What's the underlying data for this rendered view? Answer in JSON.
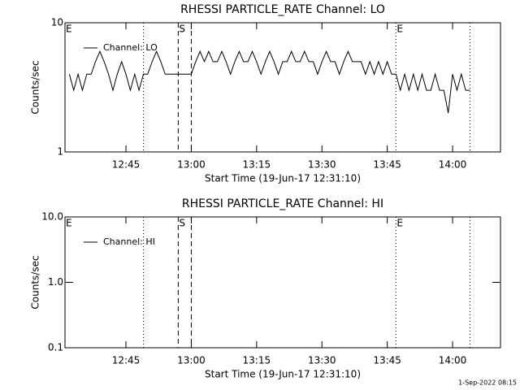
{
  "chart_data": [
    {
      "type": "line",
      "title": "RHESSI PARTICLE_RATE Channel: LO",
      "xlabel": "Start Time (19-Jun-17 12:31:10)",
      "ylabel": "Counts/sec",
      "log_y": true,
      "ylim": [
        1,
        10
      ],
      "yticks": [
        1,
        10
      ],
      "xlim": [
        "12:31",
        "14:11"
      ],
      "xticks": [
        "12:45",
        "13:00",
        "13:15",
        "13:30",
        "13:45",
        "14:00"
      ],
      "vlines": [
        {
          "x": "12:49",
          "style": "dotted"
        },
        {
          "x": "12:57",
          "style": "dashed"
        },
        {
          "x": "13:00",
          "style": "dashed"
        },
        {
          "x": "13:47",
          "style": "dotted"
        },
        {
          "x": "14:04",
          "style": "dotted"
        }
      ],
      "markers": [
        {
          "x": "12:31",
          "label": "E"
        },
        {
          "x": "12:57",
          "label": "S"
        },
        {
          "x": "13:47",
          "label": "E"
        }
      ],
      "legend": "upper left",
      "series": [
        {
          "name": "Channel: LO",
          "color": "#000000",
          "x": [
            "12:32",
            "12:33",
            "12:34",
            "12:35",
            "12:36",
            "12:37",
            "12:38",
            "12:39",
            "12:40",
            "12:41",
            "12:42",
            "12:43",
            "12:44",
            "12:45",
            "12:46",
            "12:47",
            "12:48",
            "12:49",
            "12:50",
            "12:51",
            "12:52",
            "12:53",
            "12:54",
            "12:55",
            "12:56",
            "12:57",
            "12:58",
            "12:59",
            "13:00",
            "13:01",
            "13:02",
            "13:03",
            "13:04",
            "13:05",
            "13:06",
            "13:07",
            "13:08",
            "13:09",
            "13:10",
            "13:11",
            "13:12",
            "13:13",
            "13:14",
            "13:15",
            "13:16",
            "13:17",
            "13:18",
            "13:19",
            "13:20",
            "13:21",
            "13:22",
            "13:23",
            "13:24",
            "13:25",
            "13:26",
            "13:27",
            "13:28",
            "13:29",
            "13:30",
            "13:31",
            "13:32",
            "13:33",
            "13:34",
            "13:35",
            "13:36",
            "13:37",
            "13:38",
            "13:39",
            "13:40",
            "13:41",
            "13:42",
            "13:43",
            "13:44",
            "13:45",
            "13:46",
            "13:47",
            "13:48",
            "13:49",
            "13:50",
            "13:51",
            "13:52",
            "13:53",
            "13:54",
            "13:55",
            "13:56",
            "13:57",
            "13:58",
            "13:59",
            "14:00",
            "14:01",
            "14:02",
            "14:03",
            "14:04"
          ],
          "values": [
            4,
            3,
            4,
            3,
            4,
            4,
            5,
            6,
            5,
            4,
            3,
            4,
            5,
            4,
            3,
            4,
            3,
            4,
            4,
            5,
            6,
            5,
            4,
            4,
            4,
            4,
            4,
            4,
            4,
            5,
            6,
            5,
            6,
            5,
            5,
            6,
            5,
            4,
            5,
            6,
            5,
            5,
            6,
            5,
            4,
            5,
            6,
            5,
            4,
            5,
            5,
            6,
            5,
            5,
            6,
            5,
            5,
            4,
            5,
            6,
            5,
            5,
            4,
            5,
            6,
            5,
            5,
            5,
            4,
            5,
            4,
            5,
            4,
            5,
            4,
            4,
            3,
            4,
            3,
            4,
            3,
            4,
            3,
            3,
            4,
            3,
            3,
            2,
            4,
            3,
            4,
            3,
            3
          ]
        }
      ]
    },
    {
      "type": "line",
      "title": "RHESSI PARTICLE_RATE Channel: HI",
      "xlabel": "Start Time (19-Jun-17 12:31:10)",
      "ylabel": "Counts/sec",
      "log_y": true,
      "ylim": [
        0.1,
        10
      ],
      "yticks": [
        {
          "value": 0.1,
          "label": "0.1"
        },
        {
          "value": 1,
          "label": "1.0"
        },
        {
          "value": 10,
          "label": "10.0"
        }
      ],
      "xlim": [
        "12:31",
        "14:11"
      ],
      "xticks": [
        "12:45",
        "13:00",
        "13:15",
        "13:30",
        "13:45",
        "14:00"
      ],
      "vlines": [
        {
          "x": "12:49",
          "style": "dotted"
        },
        {
          "x": "12:57",
          "style": "dashed"
        },
        {
          "x": "13:00",
          "style": "dashed"
        },
        {
          "x": "13:47",
          "style": "dotted"
        },
        {
          "x": "14:04",
          "style": "dotted"
        }
      ],
      "markers": [
        {
          "x": "12:31",
          "label": "E"
        },
        {
          "x": "12:57",
          "label": "S"
        },
        {
          "x": "13:47",
          "label": "E"
        }
      ],
      "legend": "upper left",
      "series": [
        {
          "name": "Channel: HI",
          "color": "#000000",
          "x": [],
          "values": []
        }
      ]
    }
  ],
  "footer": "1-Sep-2022 08:15"
}
